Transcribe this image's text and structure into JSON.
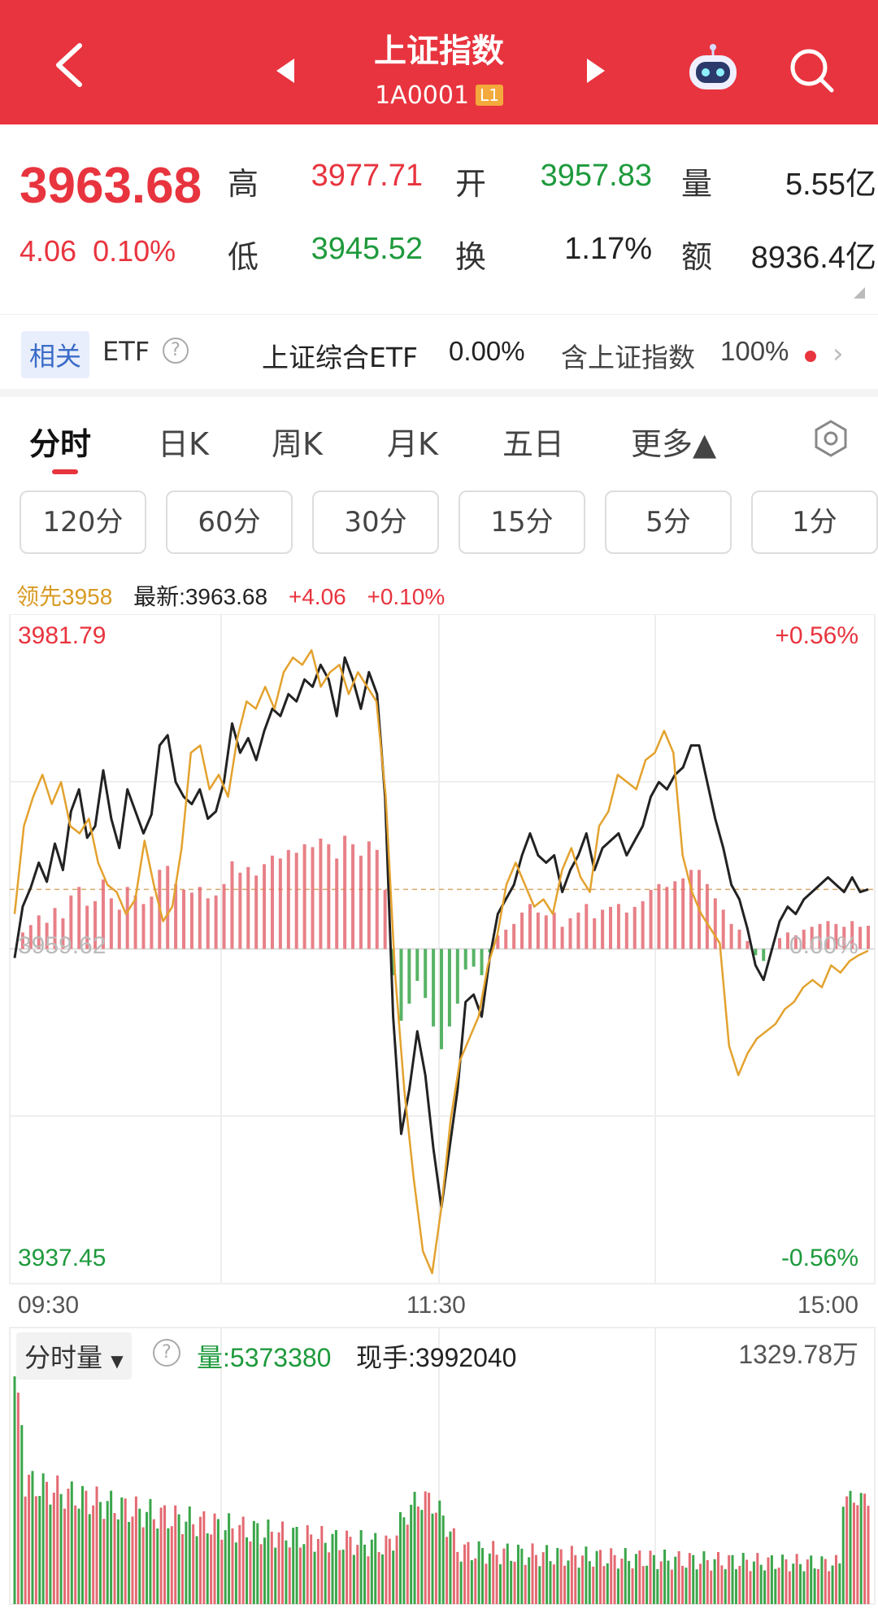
{
  "header": {
    "title": "上证指数",
    "code": "1A0001",
    "level": "L1"
  },
  "quote": {
    "price": "3963.68",
    "change": "4.06",
    "change_pct": "0.10%",
    "high_label": "高",
    "high": "3977.71",
    "open_label": "开",
    "open": "3957.83",
    "volume_label": "量",
    "volume": "5.55亿",
    "low_label": "低",
    "low": "3945.52",
    "turnover_label": "换",
    "turnover": "1.17%",
    "amount_label": "额",
    "amount": "8936.4亿"
  },
  "etf": {
    "tag": "相关",
    "label": "ETF",
    "fund_name": "上证综合ETF",
    "fund_change": "0.00%",
    "holding_label": "含上证指数",
    "holding_pct": "100%"
  },
  "tabs": [
    "分时",
    "日K",
    "周K",
    "月K",
    "五日",
    "更多▲"
  ],
  "periods": [
    "120分",
    "60分",
    "30分",
    "15分",
    "5分",
    "1分"
  ],
  "legend": {
    "lead": "领先3958",
    "latest": "最新:3963.68",
    "change": "+4.06",
    "change_pct": "+0.10%"
  },
  "chart_data": {
    "type": "line",
    "y_max_label": "3981.79",
    "y_min_label": "3937.45",
    "y_mid_label": "3959.62",
    "pct_max_label": "+0.56%",
    "pct_mid_label": "0.00%",
    "pct_min_label": "-0.56%",
    "x_labels": [
      "09:30",
      "11:30",
      "15:00"
    ],
    "ylim": [
      3937.45,
      3981.79
    ],
    "series": [
      {
        "color": "#222222",
        "values": [
          3959.0,
          3962.5,
          3963.8,
          3965.5,
          3964.2,
          3966.8,
          3965.0,
          3969.0,
          3970.5,
          3967.2,
          3968.0,
          3971.8,
          3968.5,
          3966.5,
          3970.5,
          3969.0,
          3967.5,
          3968.8,
          3973.5,
          3974.2,
          3971.0,
          3970.0,
          3969.5,
          3970.5,
          3968.5,
          3969.0,
          3971.0,
          3975.0,
          3973.0,
          3974.0,
          3972.5,
          3974.5,
          3976.0,
          3975.5,
          3977.0,
          3976.5,
          3978.0,
          3977.5,
          3979.0,
          3978.0,
          3975.5,
          3979.5,
          3978.0,
          3976.0,
          3978.5,
          3977.0,
          3970.0,
          3955.0,
          3947.0,
          3950.0,
          3954.0,
          3951.0,
          3946.0,
          3942.0,
          3946.0,
          3950.0,
          3956.0,
          3956.5,
          3955.0,
          3959.0,
          3962.0,
          3963.0,
          3964.0,
          3966.0,
          3967.5,
          3966.0,
          3965.5,
          3966.0,
          3963.5,
          3965.0,
          3966.0,
          3967.5,
          3965.0,
          3966.5,
          3967.0,
          3967.5,
          3966.0,
          3967.0,
          3968.0,
          3970.0,
          3971.0,
          3970.5,
          3971.5,
          3972.0,
          3973.5,
          3973.5,
          3971.0,
          3968.5,
          3966.5,
          3964.0,
          3963.0,
          3961.0,
          3958.5,
          3957.5,
          3959.5,
          3961.5,
          3962.5,
          3962.0,
          3963.0,
          3963.5,
          3964.0,
          3964.5,
          3964.0,
          3963.5,
          3964.5,
          3963.5,
          3963.68
        ]
      },
      {
        "color": "#e3a22e",
        "values": [
          3962.0,
          3968.0,
          3970.0,
          3971.5,
          3969.5,
          3971.0,
          3968.0,
          3967.5,
          3968.5,
          3965.5,
          3964.0,
          3963.5,
          3962.0,
          3963.0,
          3967.0,
          3964.0,
          3961.5,
          3962.5,
          3966.5,
          3973.0,
          3973.5,
          3970.5,
          3971.5,
          3970.0,
          3974.0,
          3976.5,
          3976.0,
          3977.5,
          3976.0,
          3978.5,
          3979.5,
          3979.0,
          3980.0,
          3977.5,
          3978.5,
          3979.0,
          3977.0,
          3978.5,
          3977.5,
          3976.5,
          3970.0,
          3958.0,
          3950.0,
          3944.0,
          3939.0,
          3937.5,
          3942.0,
          3948.0,
          3952.0,
          3953.5,
          3955.0,
          3958.5,
          3960.5,
          3964.0,
          3965.5,
          3964.0,
          3962.5,
          3963.0,
          3962.0,
          3965.0,
          3966.5,
          3964.5,
          3963.5,
          3968.0,
          3969.0,
          3971.5,
          3971.0,
          3970.5,
          3972.5,
          3973.0,
          3974.5,
          3973.0,
          3966.0,
          3963.5,
          3962.0,
          3961.0,
          3960.0,
          3953.0,
          3951.0,
          3952.5,
          3953.5,
          3954.0,
          3954.5,
          3955.5,
          3956.0,
          3957.0,
          3957.5,
          3957.0,
          3958.5,
          3958.0,
          3958.8,
          3959.2,
          3959.5
        ]
      }
    ]
  },
  "volume": {
    "selector": "分时量",
    "vol_label": "量:5373380",
    "hand_label": "现手:3992040",
    "max_label": "1329.78万"
  }
}
